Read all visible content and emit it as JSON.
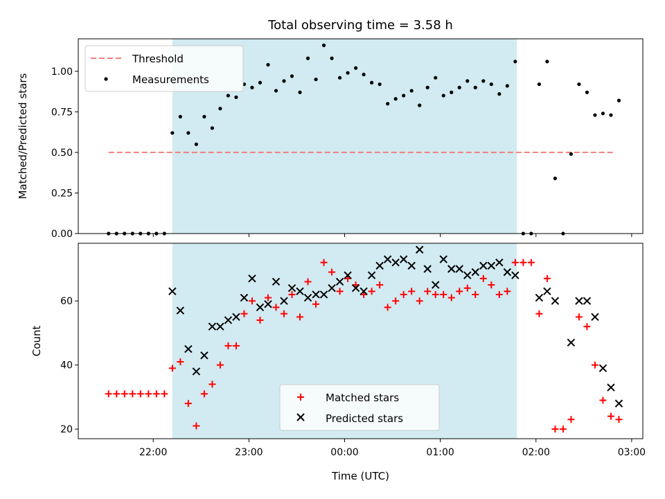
{
  "chart_data": [
    {
      "type": "scatter",
      "title": "Total observing time = 3.58 h",
      "xlabel": "",
      "ylabel": "Matched/Predicted stars",
      "ylim": [
        0,
        1.2
      ],
      "yticks": [
        "0.00",
        "0.25",
        "0.50",
        "0.75",
        "1.00"
      ],
      "shaded_region": {
        "x_start": "22:12",
        "x_end": "01:48",
        "color": "#add8e6"
      },
      "threshold": {
        "name": "Threshold",
        "value": 0.5,
        "x_start": "21:32",
        "x_end": "02:50",
        "color": "#f08080"
      },
      "legend": {
        "position": "top-left",
        "entries": [
          "Threshold",
          "Measurements"
        ]
      },
      "series": [
        {
          "name": "Measurements",
          "color": "#000000",
          "x": [
            "21:32",
            "21:37",
            "21:42",
            "21:47",
            "21:52",
            "21:57",
            "22:02",
            "22:07",
            "22:12",
            "22:17",
            "22:22",
            "22:27",
            "22:32",
            "22:37",
            "22:42",
            "22:47",
            "22:52",
            "22:57",
            "23:02",
            "23:07",
            "23:12",
            "23:17",
            "23:22",
            "23:27",
            "23:32",
            "23:37",
            "23:42",
            "23:47",
            "23:52",
            "23:57",
            "00:02",
            "00:07",
            "00:12",
            "00:17",
            "00:22",
            "00:27",
            "00:32",
            "00:37",
            "00:42",
            "00:47",
            "00:52",
            "00:57",
            "01:02",
            "01:07",
            "01:12",
            "01:17",
            "01:22",
            "01:27",
            "01:32",
            "01:37",
            "01:42",
            "01:47",
            "01:52",
            "01:57",
            "02:02",
            "02:07",
            "02:12",
            "02:17",
            "02:22",
            "02:27",
            "02:32",
            "02:37",
            "02:42",
            "02:47",
            "02:52"
          ],
          "y": [
            0,
            0,
            0,
            0,
            0,
            0,
            0,
            0,
            0.62,
            0.72,
            0.62,
            0.55,
            0.72,
            0.65,
            0.77,
            0.85,
            0.84,
            0.92,
            0.9,
            0.93,
            1.04,
            0.88,
            0.94,
            0.97,
            0.87,
            1.08,
            0.95,
            1.16,
            1.08,
            0.96,
            0.99,
            1.02,
            0.98,
            0.93,
            0.92,
            0.8,
            0.83,
            0.85,
            0.88,
            0.79,
            0.9,
            0.96,
            0.85,
            0.87,
            0.9,
            0.94,
            0.9,
            0.94,
            0.92,
            0.86,
            0.91,
            1.06,
            0,
            0,
            0.92,
            1.06,
            0.34,
            0,
            0.49,
            0.92,
            0.87,
            0.73,
            0.74,
            0.73,
            0.82
          ]
        }
      ]
    },
    {
      "type": "scatter",
      "title": "",
      "xlabel": "Time (UTC)",
      "ylabel": "Count",
      "ylim": [
        17,
        78
      ],
      "yticks": [
        "20",
        "40",
        "60"
      ],
      "xlim": [
        "21:13",
        "03:07"
      ],
      "xticks": [
        "22:00",
        "23:00",
        "00:00",
        "01:00",
        "02:00",
        "03:00"
      ],
      "shaded_region": {
        "x_start": "22:12",
        "x_end": "01:48",
        "color": "#add8e6"
      },
      "legend": {
        "position": "bottom-center",
        "entries": [
          "Matched stars",
          "Predicted stars"
        ]
      },
      "series": [
        {
          "name": "Matched stars",
          "color": "#ff0000",
          "marker": "+",
          "x": [
            "21:32",
            "21:37",
            "21:42",
            "21:47",
            "21:52",
            "21:57",
            "22:02",
            "22:07",
            "22:12",
            "22:17",
            "22:22",
            "22:27",
            "22:32",
            "22:37",
            "22:42",
            "22:47",
            "22:52",
            "22:57",
            "23:02",
            "23:07",
            "23:12",
            "23:17",
            "23:22",
            "23:27",
            "23:32",
            "23:37",
            "23:42",
            "23:47",
            "23:52",
            "23:57",
            "00:02",
            "00:07",
            "00:12",
            "00:17",
            "00:22",
            "00:27",
            "00:32",
            "00:37",
            "00:42",
            "00:47",
            "00:52",
            "00:57",
            "01:02",
            "01:07",
            "01:12",
            "01:17",
            "01:22",
            "01:27",
            "01:32",
            "01:37",
            "01:42",
            "01:47",
            "01:52",
            "01:57",
            "02:02",
            "02:07",
            "02:12",
            "02:17",
            "02:22",
            "02:27",
            "02:32",
            "02:37",
            "02:42",
            "02:47",
            "02:52"
          ],
          "y": [
            31,
            31,
            31,
            31,
            31,
            31,
            31,
            31,
            39,
            41,
            28,
            21,
            31,
            34,
            40,
            46,
            46,
            56,
            60,
            54,
            61,
            58,
            56,
            62,
            55,
            66,
            59,
            72,
            69,
            63,
            67,
            65,
            62,
            63,
            65,
            58,
            60,
            62,
            63,
            60,
            63,
            62,
            62,
            61,
            63,
            64,
            62,
            67,
            65,
            62,
            63,
            72,
            72,
            72,
            56,
            67,
            20,
            20,
            23,
            55,
            52,
            40,
            29,
            24,
            23
          ]
        },
        {
          "name": "Predicted stars",
          "color": "#000000",
          "marker": "x",
          "x": [
            "22:12",
            "22:17",
            "22:22",
            "22:27",
            "22:32",
            "22:37",
            "22:42",
            "22:47",
            "22:52",
            "22:57",
            "23:02",
            "23:07",
            "23:12",
            "23:17",
            "23:22",
            "23:27",
            "23:32",
            "23:37",
            "23:42",
            "23:47",
            "23:52",
            "23:57",
            "00:02",
            "00:07",
            "00:12",
            "00:17",
            "00:22",
            "00:27",
            "00:32",
            "00:37",
            "00:42",
            "00:47",
            "00:52",
            "00:57",
            "01:02",
            "01:07",
            "01:12",
            "01:17",
            "01:22",
            "01:27",
            "01:32",
            "01:37",
            "01:42",
            "01:47",
            "02:02",
            "02:07",
            "02:12",
            "02:22",
            "02:27",
            "02:32",
            "02:37",
            "02:42",
            "02:47",
            "02:52"
          ],
          "y": [
            63,
            57,
            45,
            38,
            43,
            52,
            52,
            54,
            55,
            61,
            67,
            58,
            59,
            66,
            60,
            64,
            63,
            61,
            62,
            62,
            64,
            66,
            68,
            64,
            63,
            68,
            71,
            73,
            72,
            73,
            71,
            76,
            70,
            65,
            73,
            70,
            70,
            68,
            69,
            71,
            71,
            72,
            69,
            68,
            61,
            63,
            60,
            47,
            60,
            60,
            55,
            39,
            33,
            28
          ]
        }
      ]
    }
  ]
}
